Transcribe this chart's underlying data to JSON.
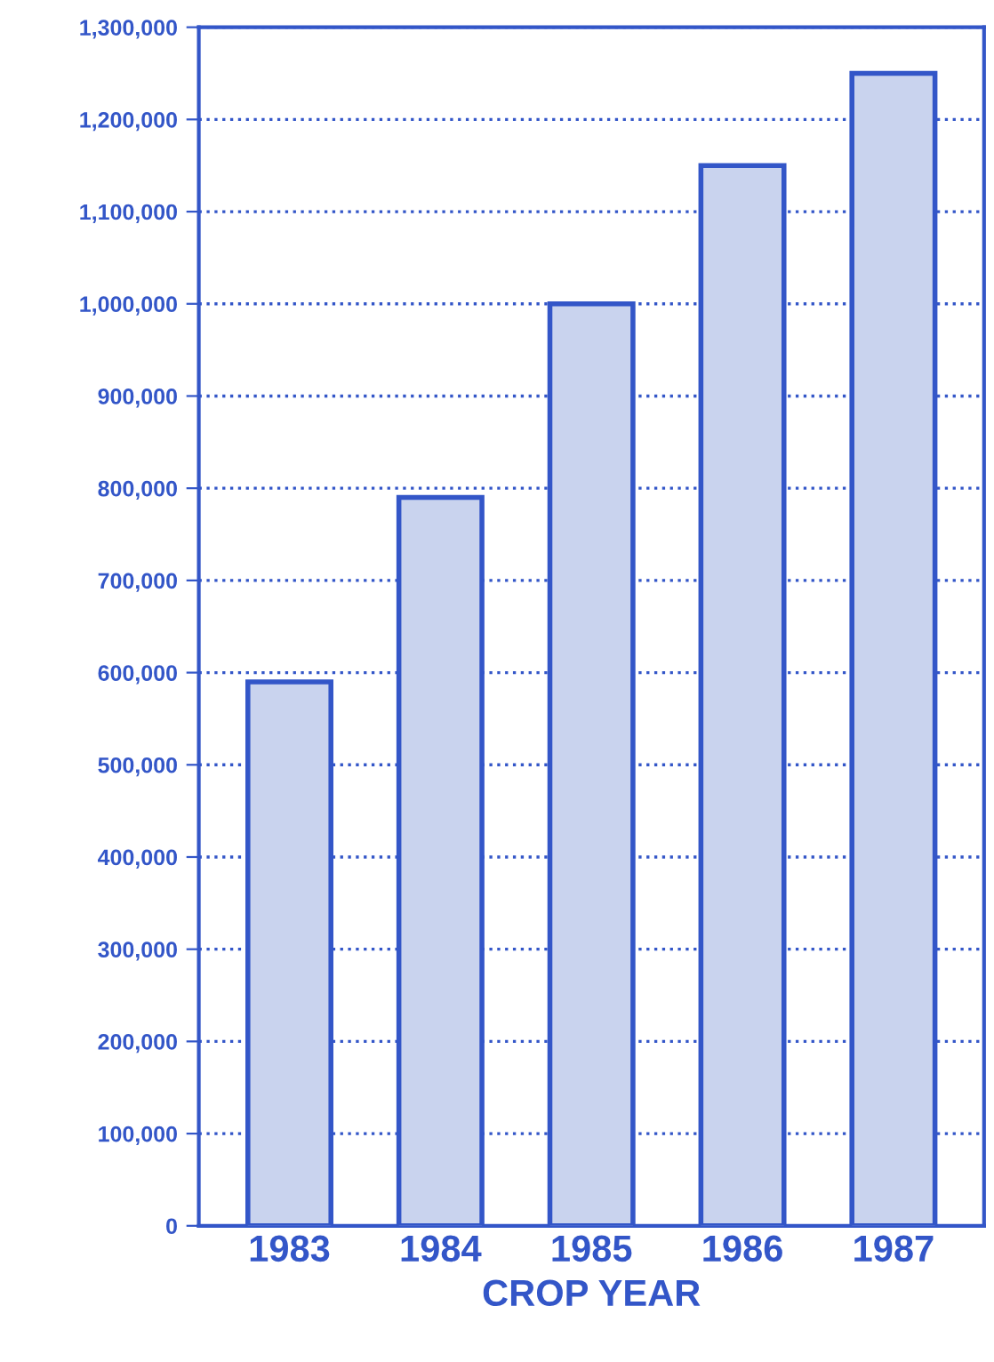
{
  "chart_data": {
    "type": "bar",
    "xlabel": "CROP YEAR",
    "categories": [
      "1983",
      "1984",
      "1985",
      "1986",
      "1987"
    ],
    "values": [
      590000,
      790000,
      1000000,
      1150000,
      1250000
    ],
    "color": "#c9d3ee",
    "ylim": [
      0,
      1300000
    ],
    "yticks": [
      {
        "value": 0,
        "label": "0"
      },
      {
        "value": 100000,
        "label": "100,000"
      },
      {
        "value": 200000,
        "label": "200,000"
      },
      {
        "value": 300000,
        "label": "300,000"
      },
      {
        "value": 400000,
        "label": "400,000"
      },
      {
        "value": 500000,
        "label": "500,000"
      },
      {
        "value": 600000,
        "label": "600,000"
      },
      {
        "value": 700000,
        "label": "700,000"
      },
      {
        "value": 800000,
        "label": "800,000"
      },
      {
        "value": 900000,
        "label": "900,000"
      },
      {
        "value": 1000000,
        "label": "1,000,000"
      },
      {
        "value": 1100000,
        "label": "1,100,000"
      },
      {
        "value": 1200000,
        "label": "1,200,000"
      },
      {
        "value": 1300000,
        "label": "1,300,000"
      }
    ],
    "grid": "y"
  }
}
